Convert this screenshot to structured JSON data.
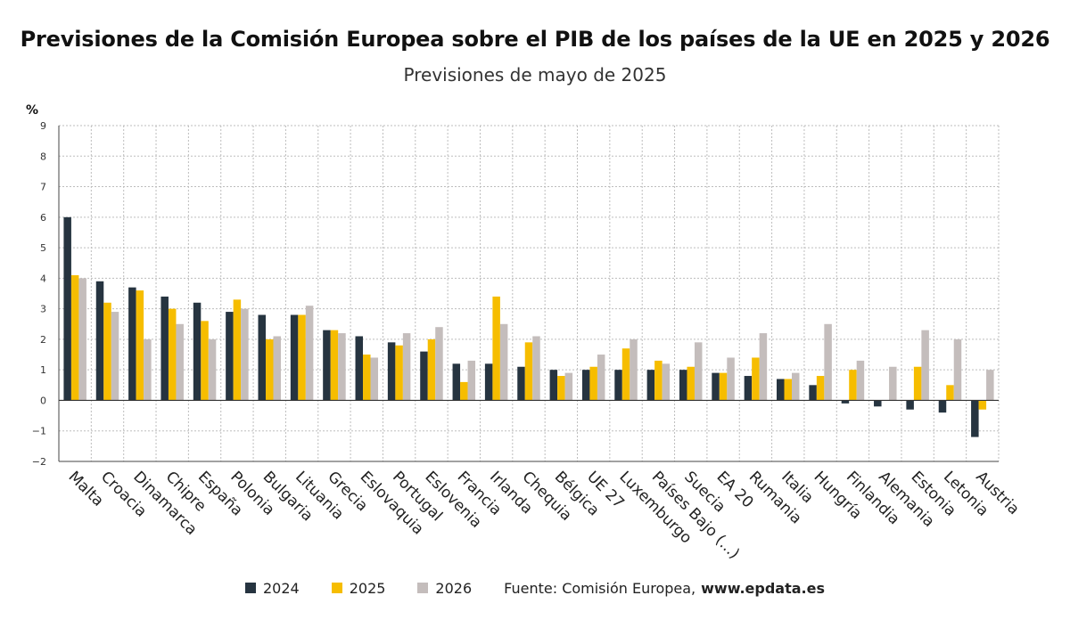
{
  "title": "Previsiones de la Comisión Europea sobre el PIB de los países de la UE en 2025 y 2026",
  "subtitle": "Previsiones de mayo de 2025",
  "source_label": "Fuente: Comisión Europea,",
  "source_site": "www.epdata.es",
  "colors": {
    "2024": "#263440",
    "2025": "#f6bd00",
    "2026": "#c4bdbc"
  },
  "chart_data": {
    "type": "bar",
    "ylabel": "%",
    "ylim": [
      -2,
      9
    ],
    "yticks": [
      "−2",
      "−1",
      "0",
      "1",
      "2",
      "3",
      "4",
      "5",
      "6",
      "7",
      "8",
      "9"
    ],
    "grid": true,
    "legend_position": "bottom",
    "categories": [
      "Malta",
      "Croacia",
      "Dinamarca",
      "Chipre",
      "España",
      "Polonia",
      "Bulgaria",
      "Lituania",
      "Grecia",
      "Eslovaquia",
      "Portugal",
      "Eslovenia",
      "Francia",
      "Irlanda",
      "Chequia",
      "Bélgica",
      "UE 27",
      "Luxemburgo",
      "Países Bajo (...)",
      "Suecia",
      "EA 20",
      "Rumania",
      "Italia",
      "Hungría",
      "Finlandia",
      "Alemania",
      "Estonia",
      "Letonia",
      "Austria"
    ],
    "series": [
      {
        "name": "2024",
        "values": [
          6.0,
          3.9,
          3.7,
          3.4,
          3.2,
          2.9,
          2.8,
          2.8,
          2.3,
          2.1,
          1.9,
          1.6,
          1.2,
          1.2,
          1.1,
          1.0,
          1.0,
          1.0,
          1.0,
          1.0,
          0.9,
          0.8,
          0.7,
          0.5,
          -0.1,
          -0.2,
          -0.3,
          -0.4,
          -1.2
        ]
      },
      {
        "name": "2025",
        "values": [
          4.1,
          3.2,
          3.6,
          3.0,
          2.6,
          3.3,
          2.0,
          2.8,
          2.3,
          1.5,
          1.8,
          2.0,
          0.6,
          3.4,
          1.9,
          0.8,
          1.1,
          1.7,
          1.3,
          1.1,
          0.9,
          1.4,
          0.7,
          0.8,
          1.0,
          0.0,
          1.1,
          0.5,
          -0.3
        ]
      },
      {
        "name": "2026",
        "values": [
          4.0,
          2.9,
          2.0,
          2.5,
          2.0,
          3.0,
          2.1,
          3.1,
          2.2,
          1.4,
          2.2,
          2.4,
          1.3,
          2.5,
          2.1,
          0.9,
          1.5,
          2.0,
          1.2,
          1.9,
          1.4,
          2.2,
          0.9,
          2.5,
          1.3,
          1.1,
          2.3,
          2.0,
          1.0
        ]
      }
    ]
  }
}
